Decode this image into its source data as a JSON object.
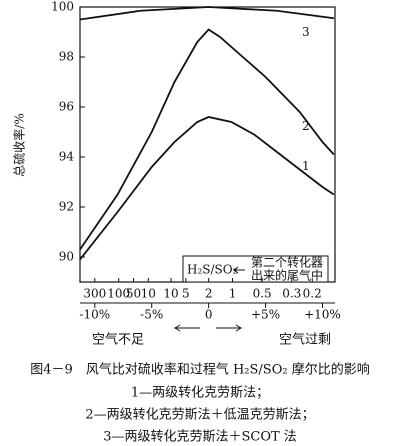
{
  "chart_data": {
    "type": "line",
    "title": "图4－9　风气比对硫收率和过程气 H₂S/SO₂ 摩尔比的影响",
    "notes": [
      "1—两级转化克劳斯法；",
      "2—两级转化克劳斯法＋低温克劳斯法；",
      "3—两级转化克劳斯法＋SCOT 法"
    ],
    "y_label": "总硫收率/%",
    "x_axis_labels": [
      "空气不足",
      "空气过剩"
    ],
    "annotations": [
      "H₂S/SO₂",
      "第二个转化器",
      "出来的尾气中"
    ],
    "xlim": [
      -11.3,
      11.1
    ],
    "ylim": [
      89,
      100
    ],
    "yticks": [
      90,
      92,
      94,
      96,
      98,
      100
    ],
    "xticks": [
      {
        "value": -10,
        "label": "-10%"
      },
      {
        "value": -5,
        "label": "-5%"
      },
      0,
      {
        "value": 5,
        "label": "+5%"
      },
      {
        "value": 10,
        "label": "+10%"
      }
    ],
    "ratio_ticks": [
      {
        "value": -10,
        "label": "300"
      },
      {
        "value": -7.9,
        "label": "100"
      },
      {
        "value": -6.6,
        "label": "50"
      },
      {
        "value": -5.3,
        "label": "10"
      },
      {
        "value": -3.3,
        "label": "10"
      },
      {
        "value": -2.0,
        "label": "5"
      },
      {
        "value": 0,
        "label": "2"
      },
      {
        "value": 2.1,
        "label": "1"
      },
      {
        "value": 4.7,
        "label": "0.5"
      },
      {
        "value": 7.3,
        "label": "0.3"
      },
      {
        "value": 9.1,
        "label": "0.2"
      }
    ],
    "series": [
      {
        "name": "1",
        "color": "#111",
        "x": [
          -11.3,
          -8,
          -5,
          -3,
          -1,
          0,
          2,
          4,
          6,
          8,
          10,
          11
        ],
        "values": [
          89.9,
          91.8,
          93.6,
          94.6,
          95.4,
          95.6,
          95.4,
          94.9,
          94.2,
          93.5,
          92.8,
          92.5
        ]
      },
      {
        "name": "2",
        "color": "#111",
        "x": [
          -11.3,
          -8,
          -5,
          -3,
          -1,
          0,
          1,
          3,
          5,
          8,
          10,
          11
        ],
        "values": [
          90.3,
          92.5,
          95,
          97,
          98.6,
          99.1,
          98.8,
          98,
          97.2,
          95.8,
          94.6,
          94.1
        ]
      },
      {
        "name": "3",
        "color": "#111",
        "x": [
          -11.3,
          -6,
          0,
          6,
          11
        ],
        "values": [
          99.5,
          99.85,
          100,
          99.85,
          99.55
        ]
      }
    ]
  }
}
